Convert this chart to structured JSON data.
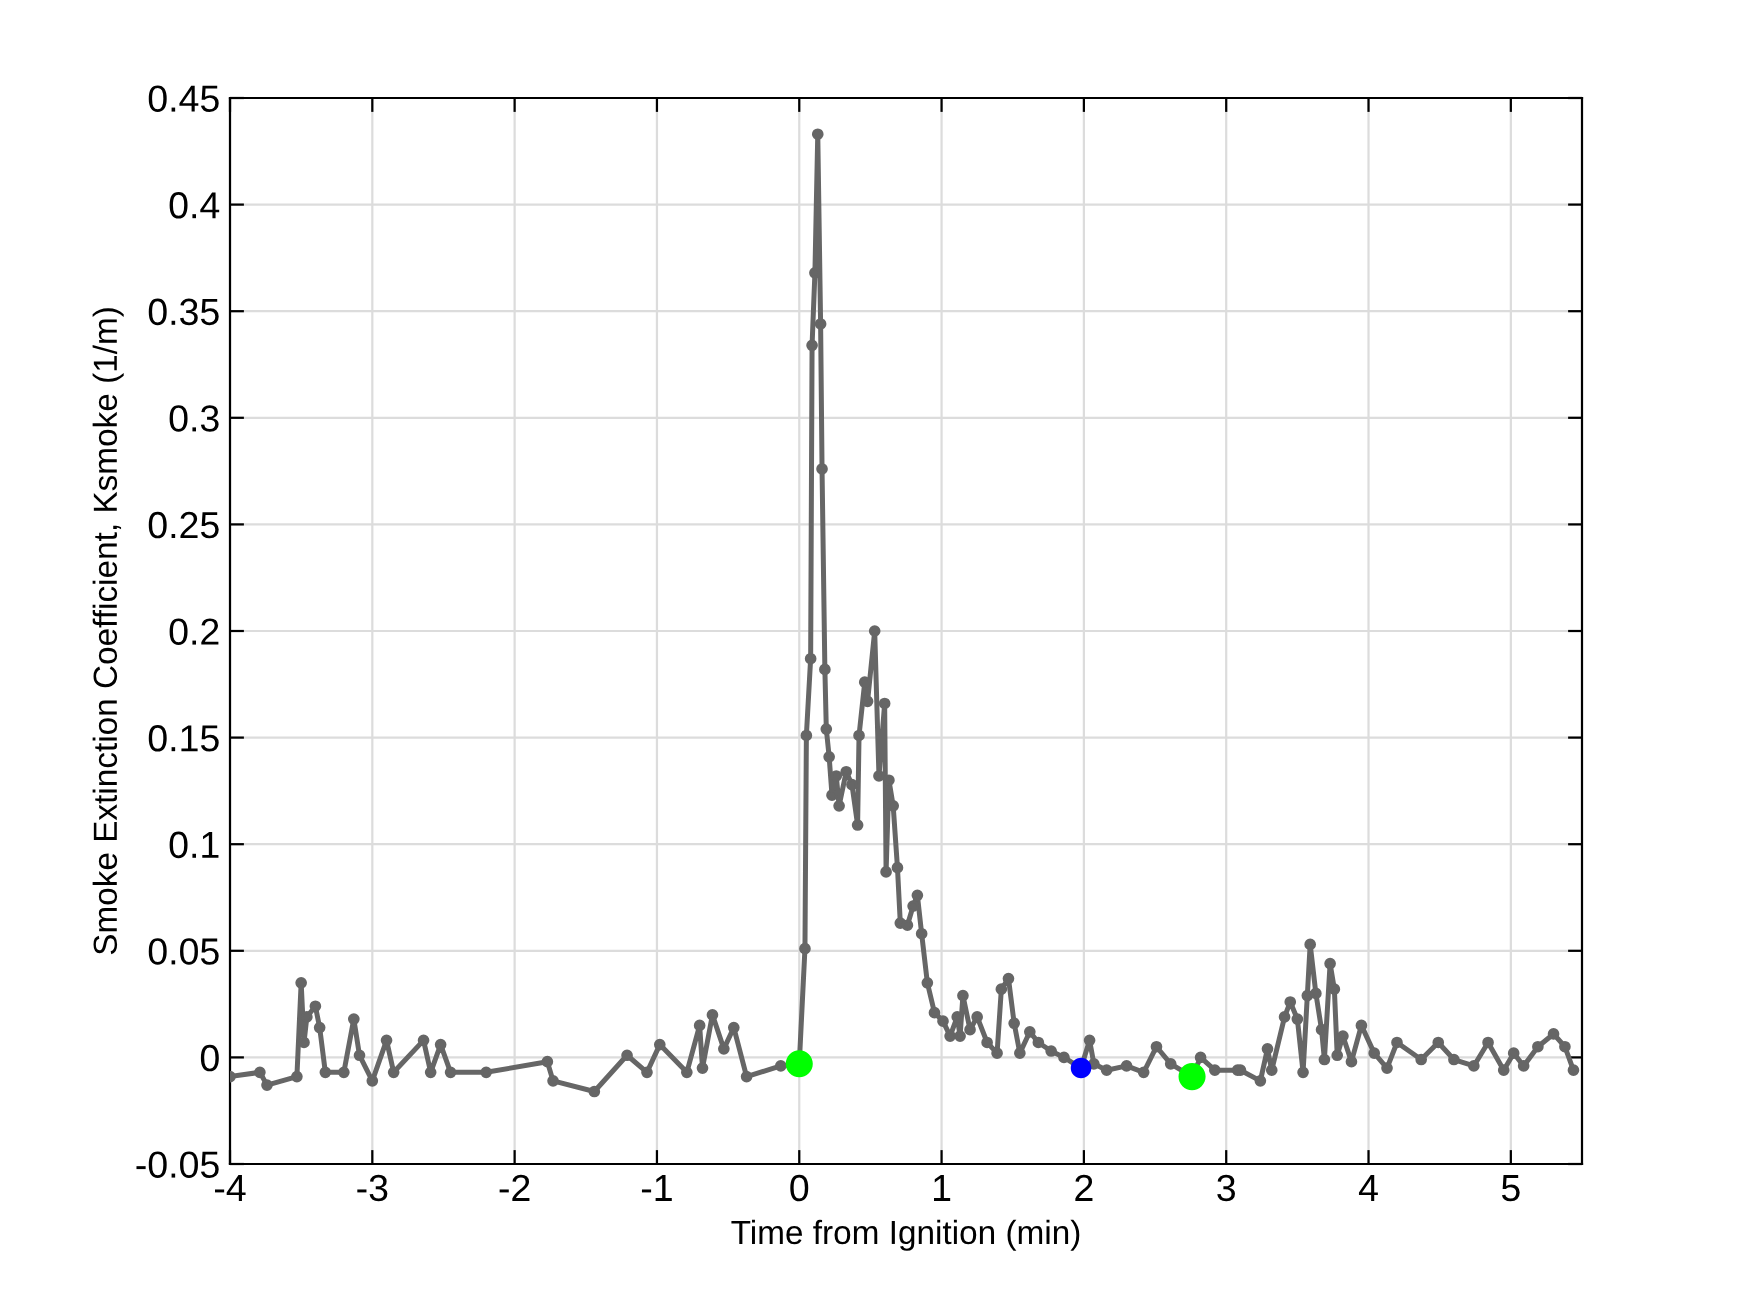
{
  "chart_data": {
    "type": "line",
    "xlabel": "Time from Ignition (min)",
    "ylabel": "Smoke Extinction Coefficient, Ksmoke (1/m)",
    "xlim": [
      -4,
      5.5
    ],
    "ylim": [
      -0.05,
      0.45
    ],
    "xticks": [
      -4,
      -3,
      -2,
      -1,
      0,
      1,
      2,
      3,
      4,
      5
    ],
    "yticks": [
      -0.05,
      0,
      0.05,
      0.1,
      0.15,
      0.2,
      0.25,
      0.3,
      0.35,
      0.4,
      0.45
    ],
    "grid": true,
    "series": [
      {
        "color": "#666666",
        "marker": "circle",
        "x": [
          -4.0,
          -3.79,
          -3.74,
          -3.53,
          -3.5,
          -3.48,
          -3.46,
          -3.4,
          -3.37,
          -3.33,
          -3.2,
          -3.13,
          -3.09,
          -3.0,
          -2.9,
          -2.85,
          -2.64,
          -2.59,
          -2.52,
          -2.45,
          -2.2,
          -1.77,
          -1.73,
          -1.44,
          -1.21,
          -1.07,
          -0.98,
          -0.79,
          -0.7,
          -0.68,
          -0.61,
          -0.53,
          -0.46,
          -0.37,
          -0.13,
          0.0,
          0.04,
          0.05,
          0.08,
          0.09,
          0.11,
          0.13,
          0.15,
          0.16,
          0.18,
          0.19,
          0.21,
          0.23,
          0.26,
          0.28,
          0.33,
          0.37,
          0.41,
          0.42,
          0.46,
          0.48,
          0.53,
          0.56,
          0.6,
          0.61,
          0.63,
          0.66,
          0.69,
          0.71,
          0.76,
          0.8,
          0.83,
          0.86,
          0.9,
          0.95,
          1.01,
          1.06,
          1.11,
          1.13,
          1.15,
          1.2,
          1.25,
          1.32,
          1.39,
          1.42,
          1.47,
          1.51,
          1.55,
          1.62,
          1.68,
          1.77,
          1.86,
          1.98,
          2.04,
          2.07,
          2.16,
          2.3,
          2.42,
          2.51,
          2.61,
          2.76,
          2.82,
          2.92,
          3.08,
          3.1,
          3.24,
          3.29,
          3.32,
          3.41,
          3.45,
          3.5,
          3.54,
          3.57,
          3.59,
          3.63,
          3.67,
          3.69,
          3.73,
          3.76,
          3.78,
          3.82,
          3.88,
          3.95,
          4.04,
          4.13,
          4.2,
          4.37,
          4.49,
          4.6,
          4.74,
          4.84,
          4.95,
          5.02,
          5.09,
          5.19,
          5.3,
          5.38,
          5.44
        ],
        "values": [
          -0.009,
          -0.007,
          -0.013,
          -0.009,
          0.035,
          0.007,
          0.019,
          0.024,
          0.014,
          -0.007,
          -0.007,
          0.018,
          0.001,
          -0.011,
          0.008,
          -0.007,
          0.008,
          -0.007,
          0.006,
          -0.007,
          -0.007,
          -0.002,
          -0.011,
          -0.016,
          0.001,
          -0.007,
          0.006,
          -0.007,
          0.015,
          -0.005,
          0.02,
          0.004,
          0.014,
          -0.009,
          -0.004,
          -0.003,
          0.051,
          0.151,
          0.187,
          0.334,
          0.368,
          0.433,
          0.344,
          0.276,
          0.182,
          0.154,
          0.141,
          0.123,
          0.132,
          0.118,
          0.134,
          0.128,
          0.109,
          0.151,
          0.176,
          0.167,
          0.2,
          0.132,
          0.166,
          0.087,
          0.13,
          0.118,
          0.089,
          0.063,
          0.062,
          0.071,
          0.076,
          0.058,
          0.035,
          0.021,
          0.017,
          0.01,
          0.019,
          0.01,
          0.029,
          0.013,
          0.019,
          0.007,
          0.002,
          0.032,
          0.037,
          0.016,
          0.002,
          0.012,
          0.007,
          0.003,
          0.0,
          -0.005,
          0.008,
          -0.003,
          -0.006,
          -0.004,
          -0.007,
          0.005,
          -0.003,
          -0.009,
          0.0,
          -0.006,
          -0.006,
          -0.006,
          -0.011,
          0.004,
          -0.006,
          0.019,
          0.026,
          0.018,
          -0.007,
          0.029,
          0.053,
          0.03,
          0.013,
          -0.001,
          0.044,
          0.032,
          0.001,
          0.01,
          -0.002,
          0.015,
          0.002,
          -0.005,
          0.007,
          -0.001,
          0.007,
          -0.001,
          -0.004,
          0.007,
          -0.006,
          0.002,
          -0.004,
          0.005,
          0.011,
          0.005,
          -0.006
        ]
      },
      {
        "type": "scatter",
        "color": "#00ff00",
        "marker": "circle",
        "x": [
          0.0,
          2.76
        ],
        "values": [
          -0.003,
          -0.009
        ]
      },
      {
        "type": "scatter",
        "color": "#0000ff",
        "marker": "circle",
        "x": [
          1.98
        ],
        "values": [
          -0.005
        ]
      }
    ]
  }
}
